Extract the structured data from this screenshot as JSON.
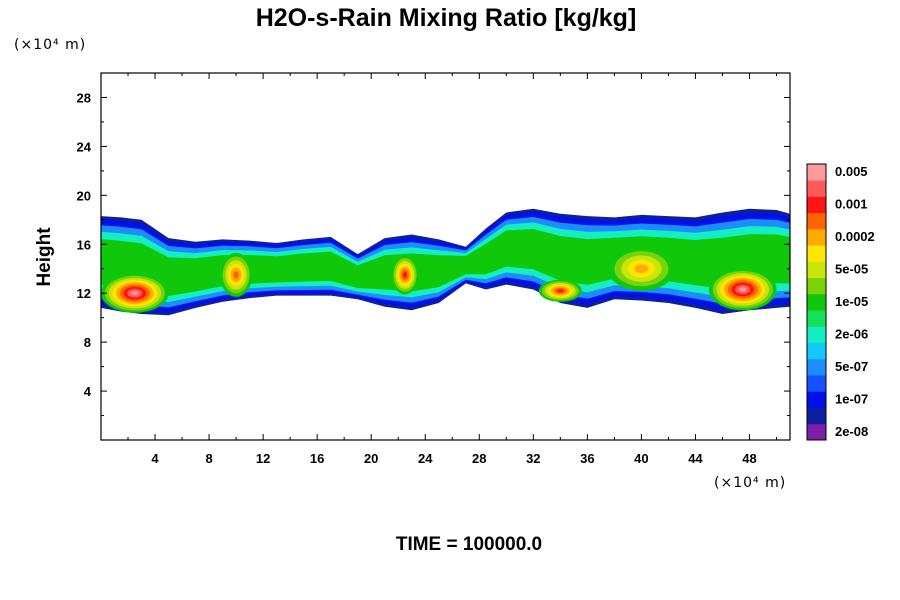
{
  "chart_data": {
    "type": "heatmap",
    "title": "H2O-s-Rain Mixing Ratio [kg/kg]",
    "ylabel": "Height",
    "xlabel": "",
    "x_unit": "(×10⁴ m)",
    "y_unit": "(×10⁴ m)",
    "xlim": [
      0,
      51
    ],
    "ylim": [
      0,
      30
    ],
    "x_ticks": [
      4,
      8,
      12,
      16,
      20,
      24,
      28,
      32,
      36,
      40,
      44,
      48
    ],
    "y_ticks": [
      4,
      8,
      12,
      16,
      20,
      24,
      28
    ],
    "colorbar": {
      "colors": [
        "#7a1fa8",
        "#0d1fa0",
        "#0010e8",
        "#1452ff",
        "#1c8cff",
        "#12c8ff",
        "#14eec0",
        "#14e05a",
        "#10c80a",
        "#7ad20a",
        "#c8e60a",
        "#ffe600",
        "#ffaa00",
        "#ff6400",
        "#ff1414",
        "#ff5a5a",
        "#ff9a9a"
      ],
      "labels": [
        "2e-08",
        "1e-07",
        "5e-07",
        "2e-06",
        "1e-05",
        "5e-05",
        "0.0002",
        "0.001",
        "0.005"
      ],
      "label_positions": [
        0,
        2,
        4,
        6,
        8,
        10,
        12,
        14,
        16
      ]
    },
    "band": {
      "x": [
        0,
        1.5,
        3,
        5,
        7,
        9,
        11,
        13,
        15,
        17,
        19,
        21,
        23,
        25,
        27,
        28.5,
        30,
        32,
        34,
        36,
        38,
        40,
        42,
        44,
        46,
        48,
        50,
        51
      ],
      "top": [
        18.3,
        18.2,
        18.0,
        16.5,
        16.2,
        16.4,
        16.3,
        16.1,
        16.4,
        16.6,
        15.2,
        16.5,
        16.8,
        16.4,
        15.8,
        17.3,
        18.6,
        18.9,
        18.5,
        18.3,
        18.2,
        18.4,
        18.3,
        18.2,
        18.6,
        18.9,
        18.8,
        18.5
      ],
      "bottom": [
        10.8,
        10.5,
        10.3,
        10.2,
        10.8,
        11.3,
        11.6,
        11.8,
        11.8,
        11.8,
        11.5,
        10.9,
        10.6,
        11.2,
        12.8,
        12.3,
        12.7,
        12.3,
        11.2,
        10.8,
        11.5,
        11.4,
        11.2,
        10.8,
        10.3,
        10.6,
        10.8,
        10.9
      ]
    },
    "peaks": [
      {
        "x": 2.5,
        "y": 12.0,
        "rx": 2.5,
        "ry": 1.6,
        "level": 16
      },
      {
        "x": 10.0,
        "y": 13.5,
        "rx": 1.2,
        "ry": 1.8,
        "level": 13
      },
      {
        "x": 22.5,
        "y": 13.5,
        "rx": 1.0,
        "ry": 1.6,
        "level": 14
      },
      {
        "x": 34.0,
        "y": 12.2,
        "rx": 1.6,
        "ry": 0.9,
        "level": 14
      },
      {
        "x": 40.0,
        "y": 14.0,
        "rx": 2.5,
        "ry": 1.8,
        "level": 12
      },
      {
        "x": 47.5,
        "y": 12.3,
        "rx": 2.5,
        "ry": 1.7,
        "level": 16
      }
    ]
  },
  "footer": {
    "time_label": "TIME = 100000.0"
  }
}
